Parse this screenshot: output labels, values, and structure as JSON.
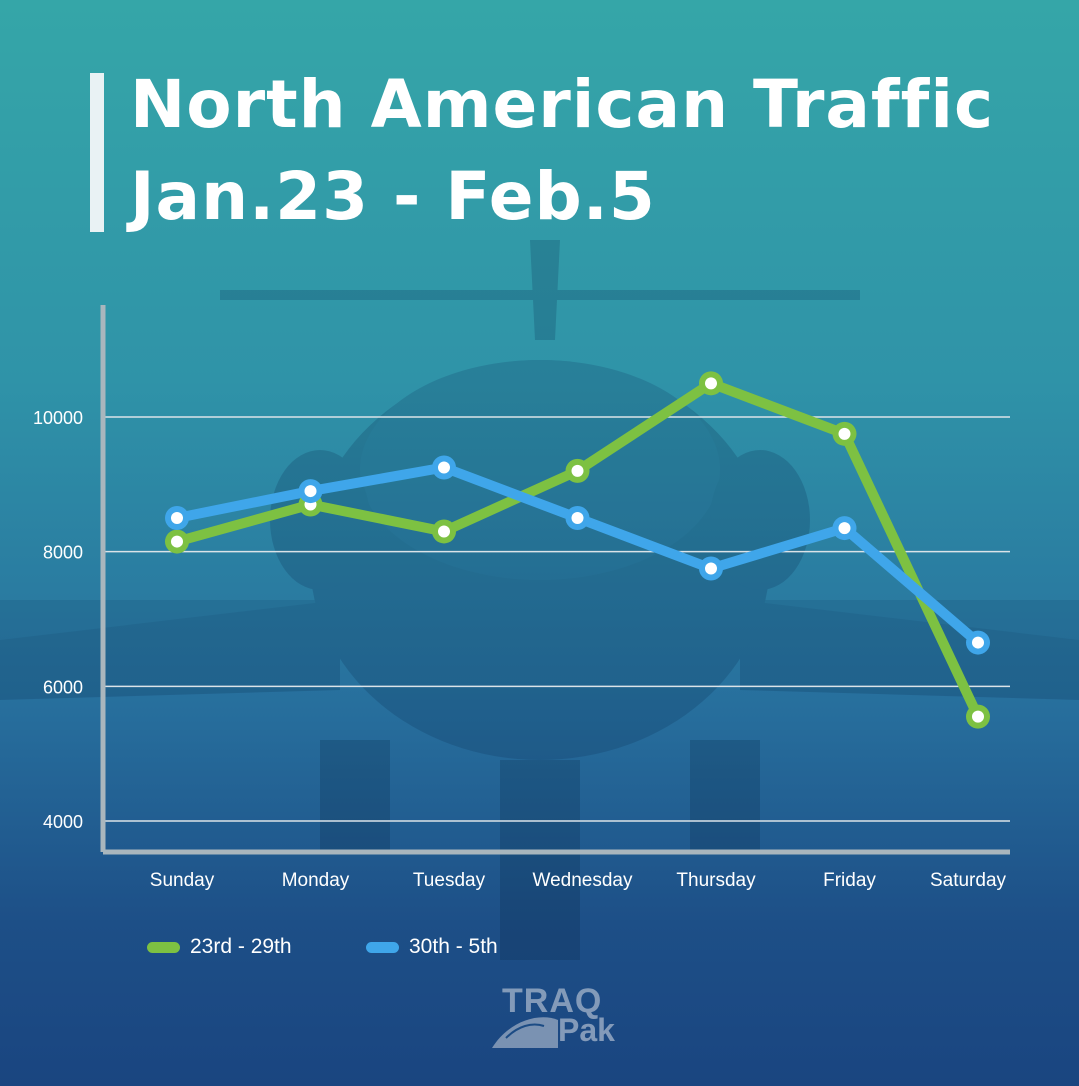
{
  "title": {
    "line1": "North American Traffic",
    "line2": "Jan.23 - Feb.5"
  },
  "colors": {
    "series1": "#7dc142",
    "series2": "#3fa6ea",
    "grid": "#dbe3e8",
    "axis": "#a9b6bd",
    "text": "#ffffff"
  },
  "chart_data": {
    "type": "line",
    "categories": [
      "Sunday",
      "Monday",
      "Tuesday",
      "Wednesday",
      "Thursday",
      "Friday",
      "Saturday"
    ],
    "series": [
      {
        "name": "23rd - 29th",
        "values": [
          8150,
          8700,
          8300,
          9200,
          10500,
          9750,
          5550
        ]
      },
      {
        "name": "30th - 5th",
        "values": [
          8500,
          8900,
          9250,
          8500,
          7750,
          8350,
          6650
        ]
      }
    ],
    "yticks": [
      10000,
      8000,
      6000,
      4000
    ],
    "ylim": [
      3500,
      11500
    ],
    "grid": true,
    "legend_position": "bottom-left",
    "title": "North American Traffic Jan.23 - Feb.5",
    "xlabel": "",
    "ylabel": ""
  },
  "logo": {
    "top": "TRAQ",
    "bottom": "Pak"
  }
}
